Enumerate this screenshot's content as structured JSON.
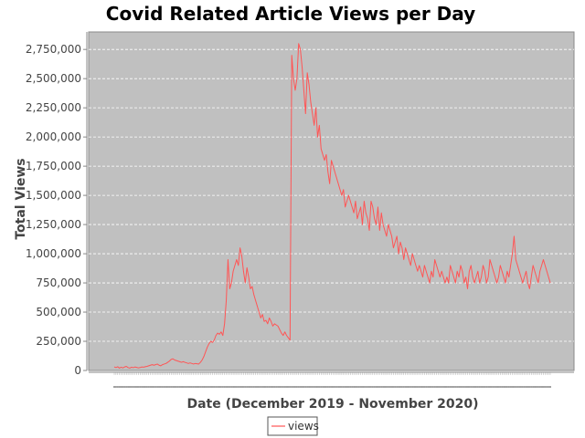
{
  "chart_data": {
    "type": "line",
    "title": "Covid Related Article Views per Day",
    "xlabel": "Date (December 2019 - November 2020)",
    "ylabel": "Total Views",
    "ylim": [
      0,
      2900000
    ],
    "y_ticks": [
      0,
      250000,
      500000,
      750000,
      1000000,
      1250000,
      1500000,
      1750000,
      2000000,
      2250000,
      2500000,
      2750000
    ],
    "y_tick_labels": [
      "0",
      "250,000",
      "500,000",
      "750,000",
      "1,000,000",
      "1,250,000",
      "1,500,000",
      "1,750,000",
      "2,000,000",
      "2,250,000",
      "2,500,000",
      "2,750,000"
    ],
    "grid": true,
    "legend": "bottom-center",
    "colors": {
      "plot_background": "#c0c0c0",
      "series": "#ff5555",
      "gridline": "#ffffff"
    },
    "series": [
      {
        "name": "views",
        "values": [
          30000,
          25000,
          32000,
          20000,
          28000,
          22000,
          30000,
          35000,
          25000,
          20000,
          28000,
          24000,
          30000,
          26000,
          22000,
          25000,
          30000,
          28000,
          32000,
          35000,
          40000,
          45000,
          50000,
          45000,
          50000,
          55000,
          45000,
          40000,
          50000,
          55000,
          60000,
          70000,
          80000,
          95000,
          100000,
          90000,
          85000,
          80000,
          75000,
          70000,
          75000,
          70000,
          65000,
          60000,
          65000,
          60000,
          55000,
          60000,
          58000,
          55000,
          70000,
          90000,
          120000,
          160000,
          200000,
          230000,
          250000,
          240000,
          260000,
          300000,
          320000,
          310000,
          330000,
          300000,
          400000,
          600000,
          950000,
          700000,
          750000,
          850000,
          900000,
          950000,
          900000,
          1050000,
          980000,
          850000,
          750000,
          880000,
          800000,
          700000,
          720000,
          650000,
          600000,
          550000,
          500000,
          450000,
          480000,
          420000,
          430000,
          400000,
          450000,
          420000,
          380000,
          400000,
          390000,
          380000,
          350000,
          320000,
          300000,
          330000,
          300000,
          280000,
          260000,
          2700000,
          2500000,
          2400000,
          2500000,
          2800000,
          2750000,
          2600000,
          2400000,
          2200000,
          2550000,
          2450000,
          2300000,
          2200000,
          2100000,
          2250000,
          2000000,
          2100000,
          1900000,
          1850000,
          1800000,
          1850000,
          1700000,
          1600000,
          1800000,
          1750000,
          1700000,
          1650000,
          1600000,
          1550000,
          1500000,
          1550000,
          1400000,
          1450000,
          1500000,
          1450000,
          1400000,
          1350000,
          1450000,
          1300000,
          1350000,
          1400000,
          1250000,
          1450000,
          1350000,
          1300000,
          1200000,
          1450000,
          1400000,
          1300000,
          1250000,
          1400000,
          1200000,
          1350000,
          1250000,
          1200000,
          1150000,
          1250000,
          1200000,
          1150000,
          1050000,
          1100000,
          1150000,
          1000000,
          1100000,
          1050000,
          950000,
          1050000,
          1000000,
          950000,
          900000,
          1000000,
          950000,
          900000,
          850000,
          900000,
          850000,
          800000,
          900000,
          850000,
          800000,
          750000,
          850000,
          800000,
          950000,
          900000,
          850000,
          800000,
          850000,
          800000,
          750000,
          800000,
          750000,
          900000,
          850000,
          800000,
          750000,
          850000,
          800000,
          900000,
          850000,
          750000,
          800000,
          700000,
          850000,
          900000,
          800000,
          750000,
          800000,
          850000,
          750000,
          800000,
          900000,
          850000,
          750000,
          800000,
          950000,
          900000,
          850000,
          800000,
          750000,
          800000,
          900000,
          850000,
          800000,
          750000,
          850000,
          800000,
          900000,
          1000000,
          1150000,
          950000,
          900000,
          850000,
          800000,
          750000,
          800000,
          850000,
          750000,
          700000,
          800000,
          900000,
          850000,
          800000,
          750000,
          850000,
          900000,
          950000,
          900000,
          850000,
          800000,
          750000
        ]
      }
    ]
  }
}
